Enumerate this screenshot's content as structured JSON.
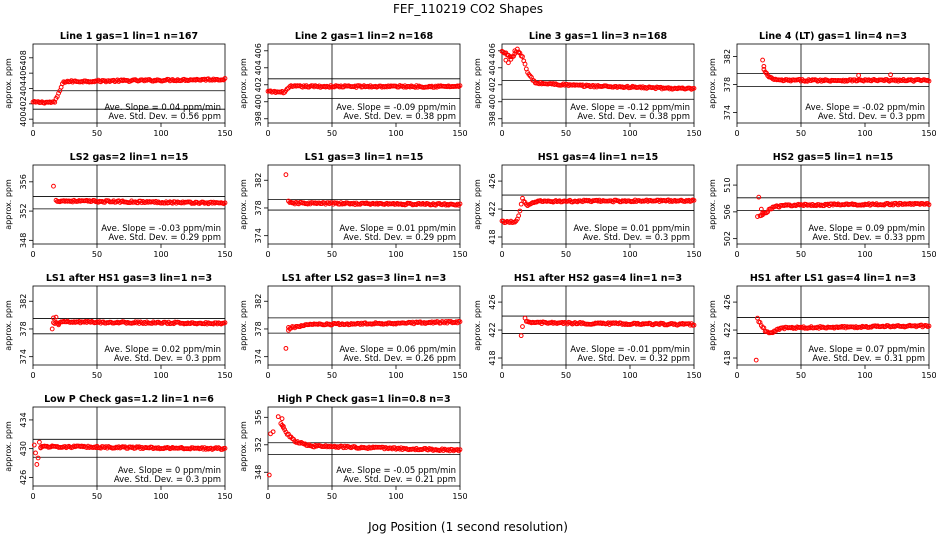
{
  "figure": {
    "title": "FEF_110219  CO2 Shapes",
    "xlabel": "Jog Position (1 second resolution)"
  },
  "chart_data": [
    {
      "type": "scatter",
      "title": "Line 1 gas=1 lin=1 n=167",
      "ylabel": "approx. ppm",
      "xlim": [
        0,
        150
      ],
      "xticks": [
        0,
        50,
        100,
        150
      ],
      "ylim": [
        399.5,
        409.8
      ],
      "yticks": [
        400,
        402,
        404,
        406,
        408
      ],
      "hlines": [
        403.7,
        401.3
      ],
      "vline": 50,
      "annotation": [
        "Ave. Slope = 0.04 ppm/min",
        "Ave. Std. Dev. = 0.56 ppm"
      ],
      "series_color": "#ff0000",
      "profile": [
        [
          0,
          402.2
        ],
        [
          17,
          402.2
        ],
        [
          24,
          404.9
        ],
        [
          150,
          405.2
        ]
      ],
      "scatter_points": [],
      "x_start": 0,
      "x_end": 150
    },
    {
      "type": "scatter",
      "title": "Line 2 gas=1 lin=2 n=168",
      "ylabel": "approx. ppm",
      "xlim": [
        0,
        150
      ],
      "xticks": [
        0,
        50,
        100,
        150
      ],
      "ylim": [
        397.5,
        406.8
      ],
      "yticks": [
        398,
        400,
        402,
        404,
        406
      ],
      "hlines": [
        402.7,
        400.4
      ],
      "vline": 50,
      "annotation": [
        "Ave. Slope = -0.09 ppm/min",
        "Ave. Std. Dev. = 0.38 ppm"
      ],
      "series_color": "#ff0000",
      "profile": [
        [
          0,
          401.2
        ],
        [
          12,
          401.1
        ],
        [
          18,
          401.8
        ],
        [
          150,
          401.8
        ]
      ],
      "scatter_points": [],
      "x_start": 0,
      "x_end": 150
    },
    {
      "type": "scatter",
      "title": "Line 3 gas=1 lin=3 n=168",
      "ylabel": "approx. ppm",
      "xlim": [
        0,
        150
      ],
      "xticks": [
        0,
        50,
        100,
        150
      ],
      "ylim": [
        397.5,
        406.8
      ],
      "yticks": [
        398,
        400,
        402,
        404,
        406
      ],
      "hlines": [
        402.5,
        400.3
      ],
      "vline": 50,
      "annotation": [
        "Ave. Slope = -0.12 ppm/min",
        "Ave. Std. Dev. = 0.38 ppm"
      ],
      "series_color": "#ff0000",
      "profile": [
        [
          0,
          405.9
        ],
        [
          4,
          405.6
        ],
        [
          8,
          405.2
        ],
        [
          12,
          406.1
        ],
        [
          16,
          405.3
        ],
        [
          20,
          403.4
        ],
        [
          26,
          402.2
        ],
        [
          60,
          401.9
        ],
        [
          150,
          401.5
        ]
      ],
      "scatter_points": [
        [
          3,
          404.9
        ],
        [
          5,
          404.6
        ],
        [
          7,
          405.0
        ],
        [
          10,
          406.0
        ],
        [
          13,
          405.8
        ]
      ],
      "x_start": 0,
      "x_end": 150
    },
    {
      "type": "scatter",
      "title": "Line 4 (LT) gas=1 lin=4 n=3",
      "ylabel": "approx. ppm",
      "xlim": [
        0,
        150
      ],
      "xticks": [
        0,
        50,
        100,
        150
      ],
      "ylim": [
        372.5,
        383.8
      ],
      "yticks": [
        374,
        378,
        382
      ],
      "hlines": [
        379.6,
        377.7
      ],
      "vline": 50,
      "annotation": [
        "Ave. Slope = -0.02 ppm/min",
        "Ave. Std. Dev. = 0.3 ppm"
      ],
      "series_color": "#ff0000",
      "profile": [
        [
          21,
          380.1
        ],
        [
          25,
          379.0
        ],
        [
          32,
          378.6
        ],
        [
          150,
          378.6
        ]
      ],
      "scatter_points": [
        [
          20,
          381.5
        ],
        [
          21,
          380.6
        ],
        [
          23,
          379.6
        ],
        [
          95,
          379.3
        ],
        [
          120,
          379.4
        ]
      ],
      "x_start": 21,
      "x_end": 150
    },
    {
      "type": "scatter",
      "title": "LS2 gas=2 lin=1 n=15",
      "ylabel": "approx. ppm",
      "xlim": [
        0,
        150
      ],
      "xticks": [
        0,
        50,
        100,
        150
      ],
      "ylim": [
        347.5,
        358.3
      ],
      "yticks": [
        348,
        352,
        356
      ],
      "hlines": [
        354.0,
        352.3
      ],
      "vline": 50,
      "annotation": [
        "Ave. Slope = -0.03 ppm/min",
        "Ave. Std. Dev. = 0.29 ppm"
      ],
      "series_color": "#ff0000",
      "profile": [
        [
          18,
          353.4
        ],
        [
          150,
          353.1
        ]
      ],
      "scatter_points": [
        [
          16,
          355.4
        ]
      ],
      "x_start": 18,
      "x_end": 150
    },
    {
      "type": "scatter",
      "title": "LS1 gas=3 lin=1 n=15",
      "ylabel": "approx. ppm",
      "xlim": [
        0,
        150
      ],
      "xticks": [
        0,
        50,
        100,
        150
      ],
      "ylim": [
        372.8,
        384.2
      ],
      "yticks": [
        374,
        378,
        382
      ],
      "hlines": [
        379.2,
        377.7
      ],
      "vline": 50,
      "annotation": [
        "Ave. Slope = 0.01 ppm/min",
        "Ave. Std. Dev. = 0.29 ppm"
      ],
      "series_color": "#ff0000",
      "profile": [
        [
          17,
          378.7
        ],
        [
          150,
          378.5
        ]
      ],
      "scatter_points": [
        [
          14,
          382.8
        ],
        [
          16,
          379.0
        ]
      ],
      "x_start": 17,
      "x_end": 150
    },
    {
      "type": "scatter",
      "title": "HS1 gas=4 lin=1 n=15",
      "ylabel": "approx. ppm",
      "xlim": [
        0,
        150
      ],
      "xticks": [
        0,
        50,
        100,
        150
      ],
      "ylim": [
        417.0,
        428.3
      ],
      "yticks": [
        418,
        422,
        426
      ],
      "hlines": [
        424.0,
        421.8
      ],
      "vline": 50,
      "annotation": [
        "Ave. Slope = 0.01 ppm/min",
        "Ave. Std. Dev. = 0.3 ppm"
      ],
      "series_color": "#ff0000",
      "profile": [
        [
          0,
          420.2
        ],
        [
          10,
          420.1
        ],
        [
          13,
          421.0
        ],
        [
          16,
          423.4
        ],
        [
          20,
          422.4
        ],
        [
          26,
          423.1
        ],
        [
          150,
          423.2
        ]
      ],
      "scatter_points": [],
      "x_start": 0,
      "x_end": 150
    },
    {
      "type": "scatter",
      "title": "HS2 gas=5 lin=1 n=15",
      "ylabel": "approx. ppm",
      "xlim": [
        0,
        150
      ],
      "xticks": [
        0,
        50,
        100,
        150
      ],
      "ylim": [
        501.2,
        513.0
      ],
      "yticks": [
        502,
        506,
        510
      ],
      "hlines": [
        508.1,
        506.2
      ],
      "vline": 50,
      "annotation": [
        "Ave. Slope = 0.09 ppm/min",
        "Ave. Std. Dev. = 0.33 ppm"
      ],
      "series_color": "#ff0000",
      "profile": [
        [
          18,
          505.3
        ],
        [
          28,
          506.7
        ],
        [
          40,
          507.0
        ],
        [
          150,
          507.2
        ]
      ],
      "scatter_points": [
        [
          16,
          505.3
        ],
        [
          17,
          508.2
        ],
        [
          19,
          506.4
        ],
        [
          20,
          505.8
        ]
      ],
      "x_start": 18,
      "x_end": 150
    },
    {
      "type": "scatter",
      "title": "LS1 after HS1 gas=3 lin=1 n=3",
      "ylabel": "approx. ppm",
      "xlim": [
        0,
        150
      ],
      "xticks": [
        0,
        50,
        100,
        150
      ],
      "ylim": [
        372.8,
        384.2
      ],
      "yticks": [
        374,
        378,
        382
      ],
      "hlines": [
        379.5,
        377.3
      ],
      "vline": 50,
      "annotation": [
        "Ave. Slope = 0.02 ppm/min",
        "Ave. Std. Dev. = 0.3 ppm"
      ],
      "series_color": "#ff0000",
      "profile": [
        [
          16,
          378.8
        ],
        [
          25,
          379.0
        ],
        [
          150,
          378.8
        ]
      ],
      "scatter_points": [
        [
          15,
          378.0
        ],
        [
          16,
          379.6
        ],
        [
          18,
          379.7
        ],
        [
          20,
          378.6
        ]
      ],
      "x_start": 16,
      "x_end": 150
    },
    {
      "type": "scatter",
      "title": "LS1 after LS2 gas=3 lin=1 n=3",
      "ylabel": "approx. ppm",
      "xlim": [
        0,
        150
      ],
      "xticks": [
        0,
        50,
        100,
        150
      ],
      "ylim": [
        372.8,
        384.2
      ],
      "yticks": [
        374,
        378,
        382
      ],
      "hlines": [
        379.6,
        377.4
      ],
      "vline": 50,
      "annotation": [
        "Ave. Slope = 0.06 ppm/min",
        "Ave. Std. Dev. = 0.26 ppm"
      ],
      "series_color": "#ff0000",
      "profile": [
        [
          16,
          378.1
        ],
        [
          30,
          378.6
        ],
        [
          150,
          379.0
        ]
      ],
      "scatter_points": [
        [
          14,
          375.2
        ],
        [
          16,
          377.8
        ]
      ],
      "x_start": 16,
      "x_end": 150
    },
    {
      "type": "scatter",
      "title": "HS1 after HS2 gas=4 lin=1 n=3",
      "ylabel": "approx. ppm",
      "xlim": [
        0,
        150
      ],
      "xticks": [
        0,
        50,
        100,
        150
      ],
      "ylim": [
        417.0,
        428.3
      ],
      "yticks": [
        418,
        422,
        426
      ],
      "hlines": [
        424.0,
        421.5
      ],
      "vline": 50,
      "annotation": [
        "Ave. Slope = -0.01 ppm/min",
        "Ave. Std. Dev. = 0.32 ppm"
      ],
      "series_color": "#ff0000",
      "profile": [
        [
          19,
          423.1
        ],
        [
          40,
          423.0
        ],
        [
          150,
          422.8
        ]
      ],
      "scatter_points": [
        [
          15,
          421.2
        ],
        [
          16,
          422.5
        ],
        [
          18,
          423.7
        ]
      ],
      "x_start": 19,
      "x_end": 150
    },
    {
      "type": "scatter",
      "title": "HS1 after LS1 gas=4 lin=1 n=3",
      "ylabel": "approx. ppm",
      "xlim": [
        0,
        150
      ],
      "xticks": [
        0,
        50,
        100,
        150
      ],
      "ylim": [
        417.0,
        428.3
      ],
      "yticks": [
        418,
        422,
        426
      ],
      "hlines": [
        423.8,
        421.5
      ],
      "vline": 50,
      "annotation": [
        "Ave. Slope = 0.07 ppm/min",
        "Ave. Std. Dev. = 0.31 ppm"
      ],
      "series_color": "#ff0000",
      "profile": [
        [
          17,
          423.3
        ],
        [
          22,
          421.9
        ],
        [
          27,
          421.6
        ],
        [
          35,
          422.3
        ],
        [
          150,
          422.6
        ]
      ],
      "scatter_points": [
        [
          15,
          417.7
        ],
        [
          16,
          423.7
        ]
      ],
      "x_start": 17,
      "x_end": 150
    },
    {
      "type": "scatter",
      "title": "Low P Check gas=1.2 lin=1 n=6",
      "ylabel": "approx. ppm",
      "xlim": [
        0,
        150
      ],
      "xticks": [
        0,
        50,
        100,
        150
      ],
      "ylim": [
        424.8,
        435.8
      ],
      "yticks": [
        426,
        430,
        434
      ],
      "hlines": [
        431.3,
        428.8
      ],
      "vline": 50,
      "annotation": [
        "Ave. Slope = 0 ppm/min",
        "Ave. Std. Dev. = 0.3 ppm"
      ],
      "series_color": "#ff0000",
      "profile": [
        [
          6,
          430.3
        ],
        [
          150,
          430.0
        ]
      ],
      "scatter_points": [
        [
          1,
          430.5
        ],
        [
          2,
          429.4
        ],
        [
          3,
          427.8
        ],
        [
          4,
          428.7
        ],
        [
          5,
          430.9
        ],
        [
          6,
          430.1
        ]
      ],
      "x_start": 6,
      "x_end": 150
    },
    {
      "type": "scatter",
      "title": "High P Check gas=1 lin=0.8 n=3",
      "ylabel": "approx. ppm",
      "xlim": [
        0,
        150
      ],
      "xticks": [
        0,
        50,
        100,
        150
      ],
      "ylim": [
        346.0,
        357.5
      ],
      "yticks": [
        348,
        352,
        356
      ],
      "hlines": [
        352.3,
        350.6
      ],
      "vline": 50,
      "annotation": [
        "Ave. Slope = -0.05 ppm/min",
        "Ave. Std. Dev. = 0.21 ppm"
      ],
      "series_color": "#ff0000",
      "profile": [
        [
          10,
          355.2
        ],
        [
          15,
          353.6
        ],
        [
          22,
          352.4
        ],
        [
          35,
          351.8
        ],
        [
          150,
          351.2
        ]
      ],
      "scatter_points": [
        [
          1,
          347.6
        ],
        [
          2,
          353.6
        ],
        [
          4,
          353.9
        ],
        [
          8,
          356.1
        ],
        [
          11,
          355.8
        ],
        [
          12,
          354.5
        ]
      ],
      "x_start": 10,
      "x_end": 150
    }
  ]
}
